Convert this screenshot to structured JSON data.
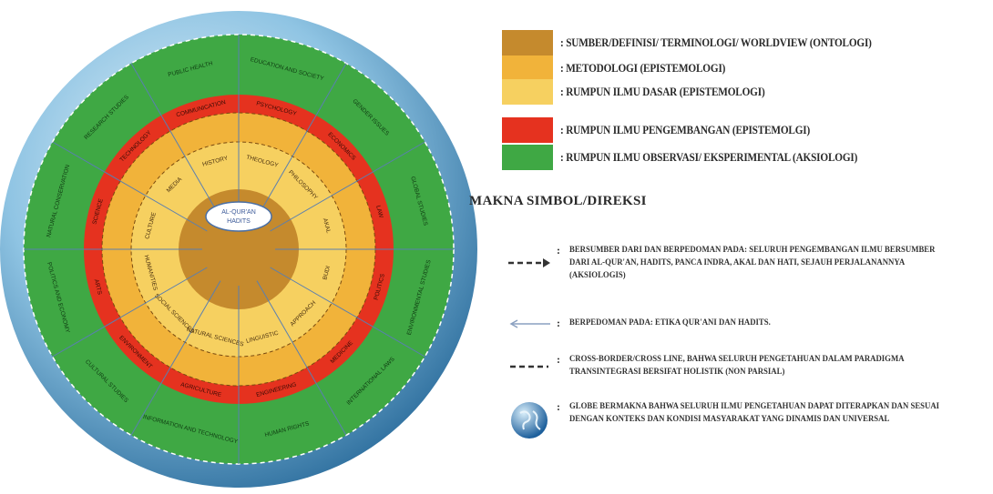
{
  "diagram": {
    "core_label": "AL-QUR'AN\nHADITS",
    "inner_labels": [
      "THEOLOGY",
      "PHILOSOPHY",
      "AKAL",
      "BUDI",
      "APPROACH",
      "LINGUISTIC",
      "NATURAL SCIENCES",
      "SOCIAL SCIENCES",
      "HUMANITIES",
      "CULTURE",
      "MEDIA",
      "HISTORY"
    ],
    "red_labels": [
      "PSYCHOLOGY",
      "ECONOMICS",
      "LAW",
      "POLITICS",
      "MEDICINE",
      "ENGINEERING",
      "AGRICULTURE",
      "ENVIRONMENT",
      "ARTS",
      "SCIENCE",
      "TECHNOLOGY",
      "COMMUNICATION"
    ],
    "green_labels": [
      "EDUCATION AND SOCIETY",
      "GENDER ISSUES",
      "GLOBAL STUDIES",
      "ENVIRONMENTAL STUDIES",
      "INTERNATIONAL LAWS",
      "HUMAN RIGHTS",
      "INFORMATION AND TECHNOLOGY",
      "CULTURAL STUDIES",
      "POLITICS AND ECONOMY",
      "NATURAL CONSERVATION",
      "RESEARCH STUDIES",
      "PUBLIC HEALTH"
    ]
  },
  "legend": {
    "items": [
      {
        "label": ": SUMBER/DEFINISI/ TERMINOLOGI/ WORLDVIEW (ONTOLOGI)",
        "color": "#c58a2d"
      },
      {
        "label": ": METODOLOGI (EPISTEMOLOGI)",
        "color": "#f1b33a"
      },
      {
        "label": ": RUMPUN ILMU DASAR (EPISTEMOLOGI)",
        "color": "#f6d060"
      },
      {
        "label": ": RUMPUN ILMU PENGEMBANGAN (EPISTEMOLGI)",
        "color": "#e5321f"
      },
      {
        "label": ": RUMPUN ILMU OBSERVASI/ EKSPERIMENTAL (AKSIOLOGI)",
        "color": "#3fa844"
      }
    ]
  },
  "symbols": {
    "title": "MAKNA SIMBOL/DIREKSI",
    "items": [
      {
        "icon": "dashed-arrow-icon",
        "text": "BERSUMBER DARI DAN BERPEDOMAN PADA: SELURUH PENGEMBANGAN ILMU BERSUMBER DARI AL-QUR'AN, HADITS, PANCA INDRA, AKAL DAN HATI, SEJAUH PERJALANANNYA (AKSIOLOGIS)"
      },
      {
        "icon": "thin-left-arrow-icon",
        "text": "BERPEDOMAN PADA: ETIKA QUR'ANI DAN HADITS."
      },
      {
        "icon": "dashed-line-icon",
        "text": "CROSS-BORDER/CROSS LINE, BAHWA SELURUH PENGETAHUAN DALAM PARADIGMA TRANSINTEGRASI BERSIFAT HOLISTIK (NON PARSIAL)"
      },
      {
        "icon": "globe-icon",
        "text": "GLOBE BERMAKNA BAHWA SELURUH ILMU PENGETAHUAN DAPAT DITERAPKAN DAN SESUAI DENGAN KONTEKS DAN KONDISI MASYARAKAT YANG DINAMIS DAN UNIVERSAL"
      }
    ]
  }
}
